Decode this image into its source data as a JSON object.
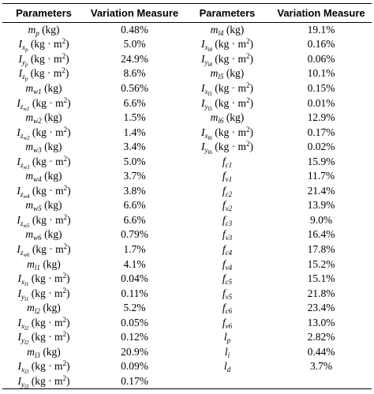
{
  "header": {
    "col1": "Parameters",
    "col2": "Variation Measure",
    "col3": "Parameters",
    "col4": "Variation Measure"
  },
  "rows": [
    {
      "p1": "m_p (kg)",
      "v1": "0.48%",
      "p2": "m_l4 (kg)",
      "v2": "19.1%"
    },
    {
      "p1": "I_{x_p} (kg·m^2)",
      "v1": "5.0%",
      "p2": "I_{x_{l4}} (kg·m^2)",
      "v2": "0.16%"
    },
    {
      "p1": "I_{y_p} (kg·m^2)",
      "v1": "24.9%",
      "p2": "I_{y_{l4}} (kg·m^2)",
      "v2": "0.06%"
    },
    {
      "p1": "I_{z_p} (kg·m^2)",
      "v1": "8.6%",
      "p2": "m_l5 (kg)",
      "v2": "10.1%"
    },
    {
      "p1": "m_w1 (kg)",
      "v1": "0.56%",
      "p2": "I_{x_{l5}} (kg·m^2)",
      "v2": "0.15%"
    },
    {
      "p1": "I_{z_{w1}} (kg·m^2)",
      "v1": "6.6%",
      "p2": "I_{y_{l5}} (kg·m^2)",
      "v2": "0.01%"
    },
    {
      "p1": "m_w2 (kg)",
      "v1": "1.5%",
      "p2": "m_l6 (kg)",
      "v2": "12.9%"
    },
    {
      "p1": "I_{z_{w2}} (kg·m^2)",
      "v1": "1.4%",
      "p2": "I_{x_{l6}} (kg·m^2)",
      "v2": "0.17%"
    },
    {
      "p1": "m_w3 (kg)",
      "v1": "3.4%",
      "p2": "I_{y_{l6}} (kg·m^2)",
      "v2": "0.02%"
    },
    {
      "p1": "I_{z_{w3}} (kg·m^2)",
      "v1": "5.0%",
      "p2": "f_c1",
      "v2": "15.9%"
    },
    {
      "p1": "m_w4 (kg)",
      "v1": "3.7%",
      "p2": "f_v1",
      "v2": "11.7%"
    },
    {
      "p1": "I_{z_{w4}} (kg·m^2)",
      "v1": "3.8%",
      "p2": "f_c2",
      "v2": "21.4%"
    },
    {
      "p1": "m_w5 (kg)",
      "v1": "6.6%",
      "p2": "f_v2",
      "v2": "13.9%"
    },
    {
      "p1": "I_{z_{w5}} (kg·m^2)",
      "v1": "6.6%",
      "p2": "f_c3",
      "v2": "9.0%"
    },
    {
      "p1": "m_w6 (kg)",
      "v1": "0.79%",
      "p2": "f_v3",
      "v2": "16.4%"
    },
    {
      "p1": "I_{z_{w6}} (kg·m^2)",
      "v1": "1.7%",
      "p2": "f_c4",
      "v2": "17.8%"
    },
    {
      "p1": "m_l1 (kg)",
      "v1": "4.1%",
      "p2": "f_v4",
      "v2": "15.2%"
    },
    {
      "p1": "I_{x_{l1}} (kg·m^2)",
      "v1": "0.04%",
      "p2": "f_c5",
      "v2": "15.1%"
    },
    {
      "p1": "I_{y_{l1}} (kg·m^2)",
      "v1": "0.11%",
      "p2": "f_v5",
      "v2": "21.8%"
    },
    {
      "p1": "m_l2 (kg)",
      "v1": "5.2%",
      "p2": "f_c6",
      "v2": "23.4%"
    },
    {
      "p1": "I_{x_{l2}} (kg·m^2)",
      "v1": "0.05%",
      "p2": "f_v6",
      "v2": "13.0%"
    },
    {
      "p1": "I_{y_{l2}} (kg·m^2)",
      "v1": "0.12%",
      "p2": "l_p",
      "v2": "2.82%"
    },
    {
      "p1": "m_l3 (kg)",
      "v1": "20.9%",
      "p2": "l_i",
      "v2": "0.44%"
    },
    {
      "p1": "I_{x_{l3}} (kg·m^2)",
      "v1": "0.09%",
      "p2": "l_d",
      "v2": "3.7%"
    },
    {
      "p1": "I_{y_{l3}} (kg·m^2)",
      "v1": "0.17%",
      "p2": "",
      "v2": ""
    }
  ]
}
